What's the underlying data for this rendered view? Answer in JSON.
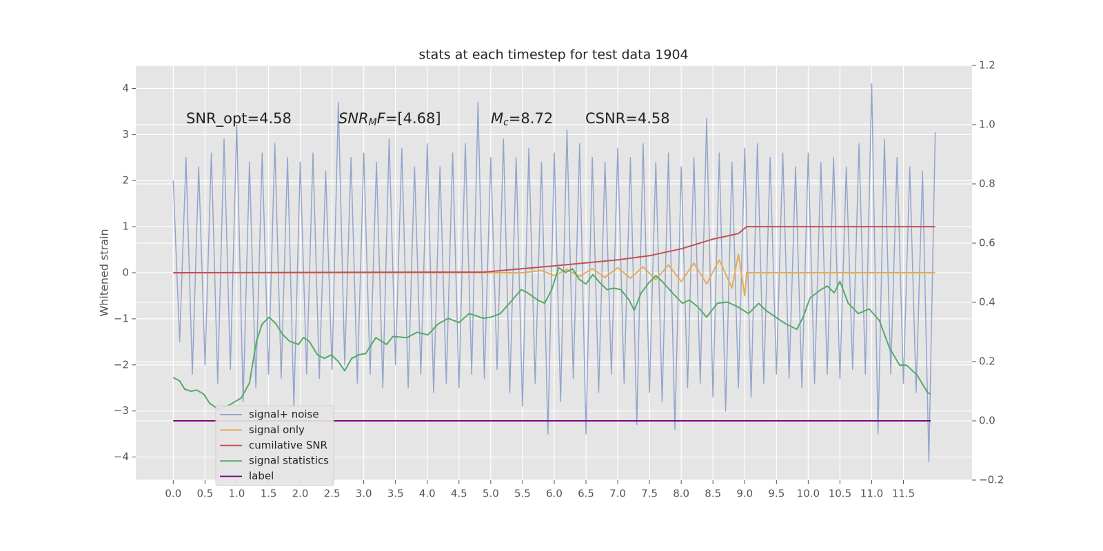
{
  "chart_data": {
    "type": "line",
    "title": "stats at each timestep for test data 1904",
    "ylabel": "Whitened strain",
    "xlim": [
      -0.59,
      12.58
    ],
    "ylim": [
      -4.5,
      4.5
    ],
    "y2lim": [
      -0.2,
      1.2
    ],
    "xticks": [
      {
        "value": 0,
        "label": "0.0"
      },
      0.5,
      {
        "value": 1,
        "label": "1.0"
      },
      1.5,
      {
        "value": 2,
        "label": "2.0"
      },
      2.5,
      {
        "value": 3,
        "label": "3.0"
      },
      3.5,
      {
        "value": 4,
        "label": "4.0"
      },
      4.5,
      {
        "value": 5,
        "label": "5.0"
      },
      5.5,
      {
        "value": 6,
        "label": "6.0"
      },
      6.5,
      {
        "value": 7,
        "label": "7.0"
      },
      7.5,
      {
        "value": 8,
        "label": "8.0"
      },
      8.5,
      {
        "value": 9,
        "label": "9.0"
      },
      9.5,
      {
        "value": 10,
        "label": "10.0"
      },
      10.5,
      {
        "value": 11,
        "label": "11.0"
      },
      11.5
    ],
    "yticks": [
      {
        "value": -4,
        "label": "−4"
      },
      {
        "value": -3,
        "label": "−3"
      },
      {
        "value": -2,
        "label": "−2"
      },
      {
        "value": -1,
        "label": "−1"
      },
      0,
      1,
      2,
      3,
      4
    ],
    "y2ticks": [
      {
        "value": -0.2,
        "label": "−0.2"
      },
      {
        "value": 0,
        "label": "0.0"
      },
      0.2,
      0.4,
      0.6,
      0.8,
      {
        "value": 1,
        "label": "1.0"
      },
      1.2
    ],
    "grid": true,
    "legend": "lower left",
    "annotations": [
      {
        "parts": [
          {
            "text": "SNR_opt=4.58"
          }
        ]
      },
      {
        "parts": [
          {
            "text": "SNR",
            "italic": true
          },
          {
            "text": "M",
            "italic": true,
            "sub": true
          },
          {
            "text": "F",
            "italic": true
          },
          {
            "text": "=[4.68]"
          }
        ]
      },
      {
        "parts": [
          {
            "text": "M",
            "italic": true
          },
          {
            "text": "c",
            "italic": true,
            "sub": true
          },
          {
            "text": "=8.72"
          }
        ]
      },
      {
        "parts": [
          {
            "text": "CSNR=4.58"
          }
        ]
      }
    ],
    "series": [
      {
        "name": "signal+ noise",
        "color": "#92a6cc",
        "x": [
          0,
          0.1,
          0.2,
          0.3,
          0.4,
          0.5,
          0.6,
          0.7,
          0.8,
          0.9,
          1,
          1.1,
          1.2,
          1.3,
          1.4,
          1.5,
          1.6,
          1.7,
          1.8,
          1.9,
          2,
          2.1,
          2.2,
          2.3,
          2.4,
          2.5,
          2.6,
          2.7,
          2.8,
          2.9,
          3,
          3.1,
          3.2,
          3.3,
          3.4,
          3.5,
          3.6,
          3.7,
          3.8,
          3.9,
          4,
          4.1,
          4.2,
          4.3,
          4.4,
          4.5,
          4.6,
          4.7,
          4.8,
          4.9,
          5,
          5.1,
          5.2,
          5.3,
          5.4,
          5.5,
          5.6,
          5.7,
          5.8,
          5.9,
          6,
          6.1,
          6.2,
          6.3,
          6.4,
          6.5,
          6.6,
          6.7,
          6.8,
          6.9,
          7,
          7.1,
          7.2,
          7.3,
          7.4,
          7.5,
          7.6,
          7.7,
          7.8,
          7.9,
          8,
          8.1,
          8.2,
          8.3,
          8.4,
          8.5,
          8.6,
          8.7,
          8.8,
          8.9,
          9,
          9.1,
          9.2,
          9.3,
          9.4,
          9.5,
          9.6,
          9.7,
          9.8,
          9.9,
          10,
          10.1,
          10.2,
          10.3,
          10.4,
          10.5,
          10.6,
          10.7,
          10.8,
          10.9,
          11,
          11.1,
          11.2,
          11.3,
          11.4,
          11.5,
          11.6,
          11.7,
          11.8,
          11.9,
          12
        ],
        "values": [
          2.0,
          -1.5,
          2.5,
          -2.2,
          2.3,
          -2.0,
          2.6,
          -2.4,
          2.9,
          -2.1,
          3.2,
          -2.8,
          2.4,
          -2.5,
          2.6,
          -2.2,
          2.8,
          -2.3,
          2.5,
          -2.9,
          2.4,
          -2.2,
          2.6,
          -2.3,
          2.2,
          -2.1,
          3.7,
          -2.0,
          2.5,
          -2.4,
          2.6,
          -2.2,
          2.4,
          -2.5,
          2.9,
          -2.0,
          2.7,
          -2.5,
          2.3,
          -2.2,
          2.8,
          -2.6,
          2.3,
          -2.4,
          2.6,
          -2.5,
          2.8,
          -2.2,
          3.7,
          -2.3,
          2.5,
          -2.1,
          2.9,
          -2.6,
          2.5,
          -2.9,
          2.7,
          -2.4,
          2.4,
          -3.5,
          2.6,
          -2.8,
          3.1,
          -2.3,
          2.8,
          -3.5,
          2.5,
          -2.6,
          2.4,
          -2.2,
          2.7,
          -2.4,
          2.5,
          -3.3,
          2.8,
          -2.6,
          2.4,
          -2.8,
          2.6,
          -3.4,
          2.3,
          -2.5,
          2.5,
          -2.4,
          3.35,
          -2.7,
          2.6,
          -3.0,
          2.4,
          -2.5,
          2.7,
          -2.7,
          2.8,
          -2.4,
          2.5,
          -2.2,
          2.6,
          -2.3,
          2.3,
          -2.5,
          2.6,
          -2.4,
          2.4,
          -2.2,
          2.5,
          -2.3,
          2.3,
          -2.1,
          2.8,
          -2.2,
          4.1,
          -3.5,
          2.9,
          -2.2,
          2.5,
          -2.4,
          2.3,
          -2.6,
          2.2,
          -4.1,
          3.05
        ]
      },
      {
        "name": "signal only",
        "color": "#e3ad55",
        "x": [
          0,
          5.5,
          5.8,
          6.0,
          6.2,
          6.4,
          6.6,
          6.8,
          7.0,
          7.2,
          7.4,
          7.6,
          7.8,
          8.0,
          8.2,
          8.4,
          8.6,
          8.8,
          8.9,
          9.0,
          9.03,
          12
        ],
        "values": [
          0,
          0,
          0.05,
          -0.06,
          0.07,
          -0.08,
          0.09,
          -0.1,
          0.11,
          -0.12,
          0.13,
          -0.15,
          0.17,
          -0.19,
          0.21,
          -0.24,
          0.28,
          -0.33,
          0.4,
          -0.5,
          0,
          0
        ]
      },
      {
        "name": "cumilative SNR",
        "color": "#c44e52",
        "x": [
          0,
          4.9,
          6.0,
          7.0,
          7.5,
          8.0,
          8.5,
          8.9,
          9.03,
          12
        ],
        "values": [
          0,
          0.015,
          0.15,
          0.28,
          0.37,
          0.52,
          0.73,
          0.85,
          1.0,
          1.0
        ]
      },
      {
        "name": "signal statistics",
        "color": "#55a868",
        "axis": "y2",
        "x": [
          0,
          0.1,
          0.18,
          0.28,
          0.37,
          0.48,
          0.57,
          0.71,
          0.88,
          1.07,
          1.2,
          1.31,
          1.4,
          1.51,
          1.62,
          1.72,
          1.83,
          1.97,
          2.05,
          2.14,
          2.27,
          2.38,
          2.49,
          2.6,
          2.7,
          2.81,
          2.92,
          3.03,
          3.19,
          3.36,
          3.46,
          3.68,
          3.84,
          4.01,
          4.17,
          4.33,
          4.5,
          4.66,
          4.77,
          4.88,
          5.0,
          5.15,
          5.31,
          5.48,
          5.58,
          5.74,
          5.85,
          5.96,
          6.07,
          6.18,
          6.29,
          6.39,
          6.5,
          6.61,
          6.72,
          6.83,
          6.94,
          7.05,
          7.18,
          7.26,
          7.37,
          7.49,
          7.6,
          7.7,
          7.86,
          8.02,
          8.13,
          8.26,
          8.4,
          8.57,
          8.73,
          8.89,
          9.06,
          9.22,
          9.33,
          9.49,
          9.65,
          9.82,
          9.92,
          10.03,
          10.2,
          10.3,
          10.41,
          10.5,
          10.63,
          10.79,
          10.96,
          11.12,
          11.28,
          11.44,
          11.55,
          11.72,
          11.88,
          11.93
        ],
        "values": [
          0.146,
          0.135,
          0.107,
          0.1,
          0.104,
          0.09,
          0.06,
          0.039,
          0.053,
          0.077,
          0.128,
          0.269,
          0.327,
          0.35,
          0.327,
          0.292,
          0.269,
          0.258,
          0.281,
          0.269,
          0.223,
          0.211,
          0.223,
          0.2,
          0.169,
          0.211,
          0.223,
          0.227,
          0.281,
          0.258,
          0.285,
          0.281,
          0.299,
          0.29,
          0.327,
          0.346,
          0.332,
          0.362,
          0.355,
          0.346,
          0.35,
          0.362,
          0.401,
          0.443,
          0.432,
          0.408,
          0.397,
          0.443,
          0.517,
          0.501,
          0.513,
          0.478,
          0.462,
          0.494,
          0.466,
          0.443,
          0.448,
          0.443,
          0.408,
          0.373,
          0.432,
          0.466,
          0.49,
          0.471,
          0.432,
          0.397,
          0.408,
          0.385,
          0.35,
          0.397,
          0.401,
          0.385,
          0.362,
          0.397,
          0.373,
          0.35,
          0.327,
          0.309,
          0.35,
          0.415,
          0.443,
          0.455,
          0.432,
          0.471,
          0.397,
          0.362,
          0.378,
          0.339,
          0.246,
          0.188,
          0.188,
          0.153,
          0.095,
          0.09
        ]
      },
      {
        "name": "label",
        "color": "#800080",
        "axis": "y2",
        "x": [
          0,
          11.93
        ],
        "values": [
          0,
          0
        ]
      }
    ]
  }
}
